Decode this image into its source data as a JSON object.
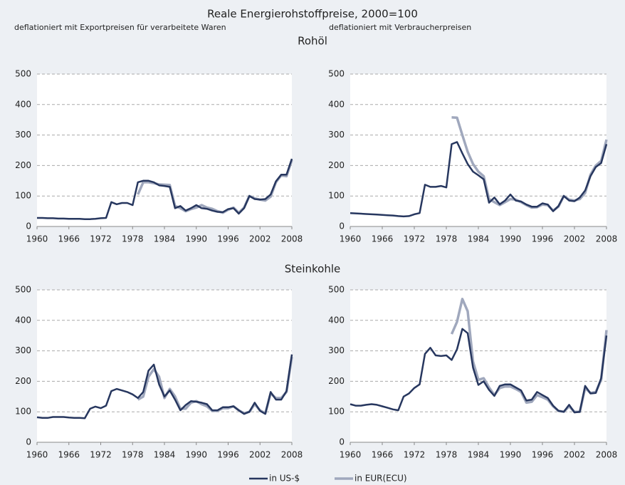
{
  "title": "Reale Energierohstoffpreise, 2000=100",
  "subtitles": [
    "deflationiert mit Exportpreisen für verarbeitete Waren",
    "deflationiert mit Verbraucherpreisen"
  ],
  "row_titles": [
    "Rohöl",
    "Steinkohle"
  ],
  "chart_data": [
    {
      "type": "line",
      "x": [
        1960,
        1961,
        1962,
        1963,
        1964,
        1965,
        1966,
        1967,
        1968,
        1969,
        1970,
        1971,
        1972,
        1973,
        1974,
        1975,
        1976,
        1977,
        1978,
        1979,
        1980,
        1981,
        1982,
        1983,
        1984,
        1985,
        1986,
        1987,
        1988,
        1989,
        1990,
        1991,
        1992,
        1993,
        1994,
        1995,
        1996,
        1997,
        1998,
        1999,
        2000,
        2001,
        2002,
        2003,
        2004,
        2005,
        2006,
        2007,
        2008
      ],
      "xlim": [
        1960,
        2008
      ],
      "xticks": [
        1960,
        1966,
        1972,
        1978,
        1984,
        1990,
        1996,
        2002,
        2008
      ],
      "ylim": [
        0,
        500
      ],
      "yticks": [
        0,
        100,
        200,
        300,
        400,
        500
      ],
      "grid": true,
      "series": [
        {
          "name": "in US-$",
          "color": "#27375f",
          "values": [
            28,
            28,
            27,
            27,
            26,
            26,
            25,
            25,
            25,
            24,
            24,
            25,
            27,
            28,
            80,
            73,
            77,
            77,
            70,
            145,
            150,
            150,
            145,
            135,
            133,
            130,
            60,
            67,
            52,
            60,
            70,
            60,
            58,
            52,
            48,
            47,
            57,
            60,
            42,
            60,
            100,
            90,
            88,
            90,
            105,
            148,
            170,
            170,
            222
          ]
        },
        {
          "name": "in EUR(ECU)",
          "color": "#a0a8bd",
          "values": [
            null,
            null,
            null,
            null,
            null,
            null,
            null,
            null,
            null,
            null,
            null,
            null,
            null,
            null,
            null,
            null,
            null,
            null,
            null,
            105,
            145,
            145,
            142,
            138,
            137,
            136,
            67,
            60,
            50,
            57,
            62,
            70,
            62,
            58,
            50,
            45,
            55,
            62,
            45,
            62,
            100,
            92,
            88,
            85,
            98,
            145,
            168,
            165,
            218
          ]
        }
      ]
    },
    {
      "type": "line",
      "x": [
        1960,
        1961,
        1962,
        1963,
        1964,
        1965,
        1966,
        1967,
        1968,
        1969,
        1970,
        1971,
        1972,
        1973,
        1974,
        1975,
        1976,
        1977,
        1978,
        1979,
        1980,
        1981,
        1982,
        1983,
        1984,
        1985,
        1986,
        1987,
        1988,
        1989,
        1990,
        1991,
        1992,
        1993,
        1994,
        1995,
        1996,
        1997,
        1998,
        1999,
        2000,
        2001,
        2002,
        2003,
        2004,
        2005,
        2006,
        2007,
        2008
      ],
      "xlim": [
        1960,
        2008
      ],
      "xticks": [
        1960,
        1966,
        1972,
        1978,
        1984,
        1990,
        1996,
        2002,
        2008
      ],
      "ylim": [
        0,
        500
      ],
      "yticks": [
        0,
        100,
        200,
        300,
        400,
        500
      ],
      "grid": true,
      "series": [
        {
          "name": "in US-$",
          "color": "#27375f",
          "values": [
            44,
            43,
            42,
            41,
            40,
            39,
            38,
            37,
            36,
            34,
            33,
            34,
            40,
            44,
            137,
            130,
            130,
            133,
            128,
            270,
            277,
            240,
            205,
            180,
            168,
            155,
            78,
            95,
            73,
            85,
            105,
            85,
            82,
            72,
            65,
            65,
            76,
            72,
            50,
            67,
            100,
            85,
            83,
            95,
            118,
            165,
            195,
            208,
            270
          ]
        },
        {
          "name": "in EUR(ECU)",
          "color": "#a0a8bd",
          "values": [
            null,
            null,
            null,
            null,
            null,
            null,
            null,
            null,
            null,
            null,
            null,
            null,
            null,
            null,
            null,
            null,
            null,
            null,
            null,
            358,
            357,
            300,
            245,
            205,
            180,
            165,
            90,
            80,
            70,
            80,
            90,
            88,
            80,
            70,
            62,
            63,
            72,
            70,
            52,
            65,
            100,
            88,
            85,
            90,
            110,
            170,
            200,
            215,
            285
          ]
        }
      ]
    },
    {
      "type": "line",
      "x": [
        1960,
        1961,
        1962,
        1963,
        1964,
        1965,
        1966,
        1967,
        1968,
        1969,
        1970,
        1971,
        1972,
        1973,
        1974,
        1975,
        1976,
        1977,
        1978,
        1979,
        1980,
        1981,
        1982,
        1983,
        1984,
        1985,
        1986,
        1987,
        1988,
        1989,
        1990,
        1991,
        1992,
        1993,
        1994,
        1995,
        1996,
        1997,
        1998,
        1999,
        2000,
        2001,
        2002,
        2003,
        2004,
        2005,
        2006,
        2007,
        2008
      ],
      "xlim": [
        1960,
        2008
      ],
      "xticks": [
        1960,
        1966,
        1972,
        1978,
        1984,
        1990,
        1996,
        2002,
        2008
      ],
      "ylim": [
        0,
        500
      ],
      "yticks": [
        0,
        100,
        200,
        300,
        400,
        500
      ],
      "grid": true,
      "series": [
        {
          "name": "in US-$",
          "color": "#27375f",
          "values": [
            82,
            80,
            80,
            83,
            83,
            83,
            81,
            80,
            80,
            79,
            110,
            117,
            112,
            120,
            168,
            175,
            170,
            165,
            157,
            145,
            165,
            235,
            255,
            190,
            150,
            170,
            140,
            105,
            122,
            135,
            133,
            130,
            125,
            105,
            105,
            115,
            115,
            118,
            105,
            93,
            100,
            130,
            103,
            93,
            165,
            140,
            140,
            168,
            288
          ]
        },
        {
          "name": "in EUR(ECU)",
          "color": "#a0a8bd",
          "values": [
            null,
            null,
            null,
            null,
            null,
            null,
            null,
            null,
            null,
            null,
            null,
            null,
            null,
            null,
            null,
            null,
            null,
            null,
            null,
            140,
            150,
            215,
            240,
            215,
            145,
            175,
            150,
            110,
            110,
            130,
            135,
            125,
            118,
            103,
            103,
            112,
            112,
            118,
            105,
            95,
            100,
            125,
            105,
            95,
            160,
            145,
            145,
            165,
            280
          ]
        }
      ]
    },
    {
      "type": "line",
      "x": [
        1960,
        1961,
        1962,
        1963,
        1964,
        1965,
        1966,
        1967,
        1968,
        1969,
        1970,
        1971,
        1972,
        1973,
        1974,
        1975,
        1976,
        1977,
        1978,
        1979,
        1980,
        1981,
        1982,
        1983,
        1984,
        1985,
        1986,
        1987,
        1988,
        1989,
        1990,
        1991,
        1992,
        1993,
        1994,
        1995,
        1996,
        1997,
        1998,
        1999,
        2000,
        2001,
        2002,
        2003,
        2004,
        2005,
        2006,
        2007,
        2008
      ],
      "xlim": [
        1960,
        2008
      ],
      "xticks": [
        1960,
        1966,
        1972,
        1978,
        1984,
        1990,
        1996,
        2002,
        2008
      ],
      "ylim": [
        0,
        500
      ],
      "yticks": [
        0,
        100,
        200,
        300,
        400,
        500
      ],
      "grid": true,
      "series": [
        {
          "name": "in US-$",
          "color": "#27375f",
          "values": [
            125,
            120,
            120,
            123,
            125,
            123,
            118,
            113,
            108,
            105,
            150,
            160,
            178,
            190,
            290,
            310,
            285,
            283,
            285,
            270,
            305,
            372,
            358,
            245,
            188,
            200,
            172,
            152,
            185,
            190,
            190,
            180,
            170,
            137,
            140,
            165,
            155,
            145,
            120,
            103,
            100,
            123,
            98,
            100,
            185,
            160,
            162,
            210,
            350
          ]
        },
        {
          "name": "in EUR(ECU)",
          "color": "#a0a8bd",
          "values": [
            null,
            null,
            null,
            null,
            null,
            null,
            null,
            null,
            null,
            null,
            null,
            null,
            null,
            null,
            null,
            null,
            null,
            null,
            null,
            355,
            395,
            470,
            430,
            265,
            205,
            210,
            180,
            155,
            178,
            183,
            183,
            175,
            165,
            130,
            133,
            155,
            148,
            140,
            118,
            103,
            100,
            118,
            100,
            100,
            178,
            162,
            165,
            205,
            368
          ]
        }
      ]
    }
  ]
}
